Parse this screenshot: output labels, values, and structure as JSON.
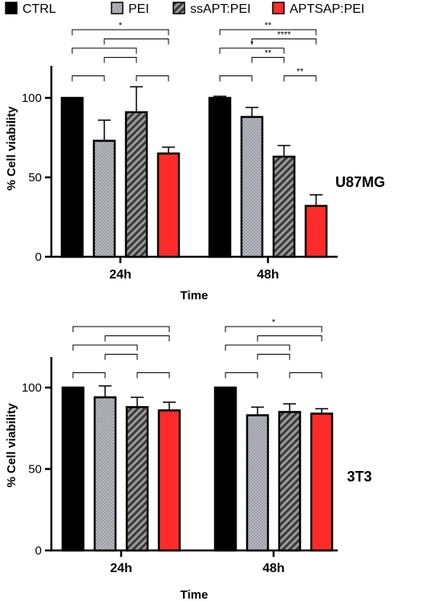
{
  "legend": [
    {
      "label": "CTRL",
      "key": "ctrl"
    },
    {
      "label": "PEI",
      "key": "pei"
    },
    {
      "label": "ssAPT:PEI",
      "key": "ssapt"
    },
    {
      "label": "APTSAP:PEI",
      "key": "aptsap"
    }
  ],
  "colors": {
    "ctrl": "#000000",
    "pei": "#a9a9b3",
    "ssapt": "#7a7a7a",
    "aptsap": "#ff2b2b"
  },
  "chart_data": [
    {
      "type": "bar",
      "panel_label": "U87MG",
      "xlabel": "Time",
      "ylabel": "% Cell viability",
      "ylim": [
        0,
        120
      ],
      "yticks": [
        0,
        50,
        100
      ],
      "categories": [
        "24h",
        "48h"
      ],
      "series": [
        {
          "name": "CTRL",
          "key": "ctrl",
          "values": [
            100,
            100
          ],
          "errors": [
            0,
            1
          ]
        },
        {
          "name": "PEI",
          "key": "pei",
          "values": [
            73,
            88
          ],
          "errors": [
            13,
            6
          ]
        },
        {
          "name": "ssAPT:PEI",
          "key": "ssapt",
          "values": [
            91,
            63
          ],
          "errors": [
            16,
            7
          ]
        },
        {
          "name": "APTSAP:PEI",
          "key": "aptsap",
          "values": [
            65,
            32
          ],
          "errors": [
            4,
            7
          ]
        }
      ],
      "significance": [
        {
          "group": 0,
          "from": 0,
          "to": 3,
          "label": "*"
        },
        {
          "group": 0,
          "from": 1,
          "to": 3,
          "label": ""
        },
        {
          "group": 0,
          "from": 0,
          "to": 2,
          "label": ""
        },
        {
          "group": 0,
          "from": 1,
          "to": 2,
          "label": ""
        },
        {
          "group": 0,
          "from": 0,
          "to": 1,
          "label": ""
        },
        {
          "group": 0,
          "from": 2,
          "to": 3,
          "label": ""
        },
        {
          "group": 1,
          "from": 0,
          "to": 3,
          "label": "**"
        },
        {
          "group": 1,
          "from": 1,
          "to": 3,
          "label": "****"
        },
        {
          "group": 1,
          "from": 0,
          "to": 2,
          "label": "*"
        },
        {
          "group": 1,
          "from": 1,
          "to": 2,
          "label": "**"
        },
        {
          "group": 1,
          "from": 0,
          "to": 1,
          "label": ""
        },
        {
          "group": 1,
          "from": 2,
          "to": 3,
          "label": "**"
        }
      ]
    },
    {
      "type": "bar",
      "panel_label": "3T3",
      "xlabel": "Time",
      "ylabel": "% Cell viability",
      "ylim": [
        0,
        120
      ],
      "yticks": [
        0,
        50,
        100
      ],
      "categories": [
        "24h",
        "48h"
      ],
      "series": [
        {
          "name": "CTRL",
          "key": "ctrl",
          "values": [
            100,
            100
          ],
          "errors": [
            0,
            0
          ]
        },
        {
          "name": "PEI",
          "key": "pei",
          "values": [
            94,
            83
          ],
          "errors": [
            7,
            5
          ]
        },
        {
          "name": "ssAPT:PEI",
          "key": "ssapt",
          "values": [
            88,
            85
          ],
          "errors": [
            6,
            5
          ]
        },
        {
          "name": "APTSAP:PEI",
          "key": "aptsap",
          "values": [
            86,
            84
          ],
          "errors": [
            5,
            3
          ]
        }
      ],
      "significance": [
        {
          "group": 0,
          "from": 0,
          "to": 3,
          "label": ""
        },
        {
          "group": 0,
          "from": 1,
          "to": 3,
          "label": ""
        },
        {
          "group": 0,
          "from": 0,
          "to": 2,
          "label": ""
        },
        {
          "group": 0,
          "from": 1,
          "to": 2,
          "label": ""
        },
        {
          "group": 0,
          "from": 0,
          "to": 1,
          "label": ""
        },
        {
          "group": 0,
          "from": 2,
          "to": 3,
          "label": ""
        },
        {
          "group": 1,
          "from": 0,
          "to": 3,
          "label": "*"
        },
        {
          "group": 1,
          "from": 1,
          "to": 3,
          "label": ""
        },
        {
          "group": 1,
          "from": 0,
          "to": 2,
          "label": ""
        },
        {
          "group": 1,
          "from": 1,
          "to": 2,
          "label": ""
        },
        {
          "group": 1,
          "from": 0,
          "to": 1,
          "label": ""
        },
        {
          "group": 1,
          "from": 2,
          "to": 3,
          "label": ""
        }
      ]
    }
  ]
}
